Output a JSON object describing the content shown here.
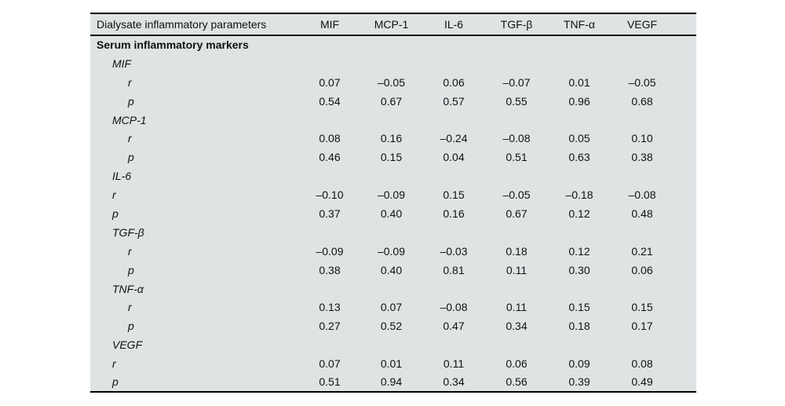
{
  "table": {
    "header": [
      "Dialysate inflammatory parameters",
      "MIF",
      "MCP-1",
      "IL-6",
      "TGF-β",
      "TNF-α",
      "VEGF"
    ],
    "section": "Serum inflammatory markers",
    "row_labels": {
      "r": "r",
      "p": "p"
    },
    "groups": [
      {
        "marker": "MIF",
        "rp_indent": 2,
        "r": [
          "0.07",
          "–0.05",
          "0.06",
          "–0.07",
          "0.01",
          "–0.05"
        ],
        "p": [
          "0.54",
          "0.67",
          "0.57",
          "0.55",
          "0.96",
          "0.68"
        ]
      },
      {
        "marker": "MCP-1",
        "rp_indent": 2,
        "r": [
          "0.08",
          "0.16",
          "–0.24",
          "–0.08",
          "0.05",
          "0.10"
        ],
        "p": [
          "0.46",
          "0.15",
          "0.04",
          "0.51",
          "0.63",
          "0.38"
        ]
      },
      {
        "marker": "IL-6",
        "rp_indent": 1,
        "r": [
          "–0.10",
          "–0.09",
          "0.15",
          "–0.05",
          "–0.18",
          "–0.08"
        ],
        "p": [
          "0.37",
          "0.40",
          "0.16",
          "0.67",
          "0.12",
          "0.48"
        ]
      },
      {
        "marker": "TGF-β",
        "rp_indent": 2,
        "r": [
          "–0.09",
          "–0.09",
          "–0.03",
          "0.18",
          "0.12",
          "0.21"
        ],
        "p": [
          "0.38",
          "0.40",
          "0.81",
          "0.11",
          "0.30",
          "0.06"
        ]
      },
      {
        "marker": "TNF-α",
        "rp_indent": 2,
        "r": [
          "0.13",
          "0.07",
          "–0.08",
          "0.11",
          "0.15",
          "0.15"
        ],
        "p": [
          "0.27",
          "0.52",
          "0.47",
          "0.34",
          "0.18",
          "0.17"
        ]
      },
      {
        "marker": "VEGF",
        "rp_indent": 1,
        "r": [
          "0.07",
          "0.01",
          "0.11",
          "0.06",
          "0.09",
          "0.08"
        ],
        "p": [
          "0.51",
          "0.94",
          "0.34",
          "0.56",
          "0.39",
          "0.49"
        ]
      }
    ],
    "colors": {
      "table_bg": "#dee3e4",
      "page_bg": "#ffffff",
      "rule": "#000000",
      "text": "#111111"
    }
  }
}
